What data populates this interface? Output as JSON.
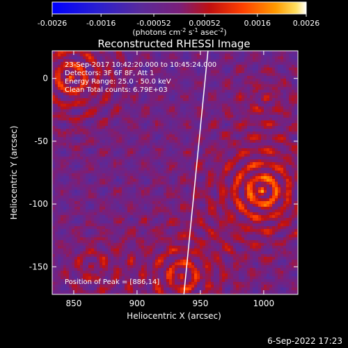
{
  "footer": {
    "date_stamp": "6-Sep-2022 17:23"
  },
  "colorbar": {
    "ticks": [
      "-0.0026",
      "-0.0016",
      "-0.00052",
      "0.00052",
      "0.0016",
      "0.0026"
    ],
    "unit_label_parts": [
      "(photons cm",
      "-2",
      " s",
      "-1",
      " asec",
      "-2",
      ")"
    ]
  },
  "info_lines": [
    "23-Sep-2017 10:42:20.000 to 10:45:24.000",
    "Detectors: 3F 6F 8F, Att 1",
    "Energy Range: 25.0 - 50.0 keV",
    "Clean    Total counts: 6.79E+03"
  ],
  "peak_label": "Position of Peak = [886,14]",
  "chart_data": {
    "type": "heatmap",
    "title": "Reconstructed RHESSI Image",
    "xlabel": "Heliocentric X (arcsec)",
    "ylabel": "Heliocentric Y (arcsec)",
    "xlim": [
      833,
      1027
    ],
    "ylim": [
      -172,
      22
    ],
    "x_ticks": [
      850,
      900,
      950,
      1000
    ],
    "y_ticks": [
      -150,
      -100,
      -50,
      0
    ],
    "colorbar_range": [
      -0.0026,
      0.0026
    ],
    "limb_line": {
      "x": [
        937,
        956
      ],
      "y": [
        -172,
        22
      ]
    },
    "peak": {
      "x": 886,
      "y": 14
    },
    "colormap_stops": [
      "#0000ff",
      "#3a2fb0",
      "#5a2a9a",
      "#7a1f7a",
      "#c01010",
      "#ff4000",
      "#ff9a00",
      "#ffe060",
      "#ffffff"
    ]
  }
}
